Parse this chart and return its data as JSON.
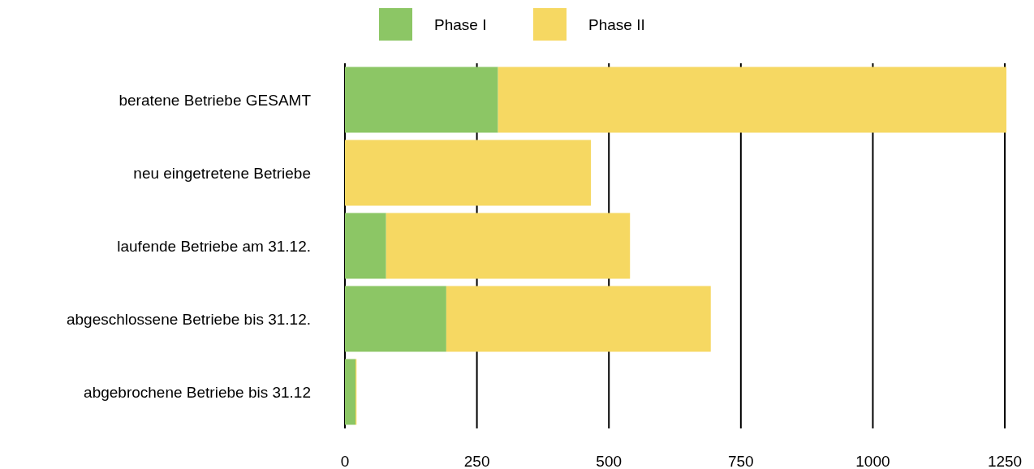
{
  "chart_data": {
    "type": "bar",
    "orientation": "horizontal",
    "stacked": true,
    "categories": [
      "beratene Betriebe GESAMT",
      "neu eingetretene Betriebe",
      "laufende Betriebe am 31.12.",
      "abgeschlossene Betriebe bis 31.12.",
      "abgebrochene Betriebe bis 31.12"
    ],
    "series": [
      {
        "name": "Phase I",
        "color": "#8cc665",
        "values": [
          290,
          0,
          78,
          192,
          20
        ]
      },
      {
        "name": "Phase II",
        "color": "#f6d862",
        "values": [
          963,
          466,
          462,
          501,
          2
        ]
      }
    ],
    "xlim": [
      0,
      1253
    ],
    "xticks": [
      0,
      250,
      500,
      750,
      1000,
      1250
    ],
    "grid": "x",
    "legend": "top"
  }
}
